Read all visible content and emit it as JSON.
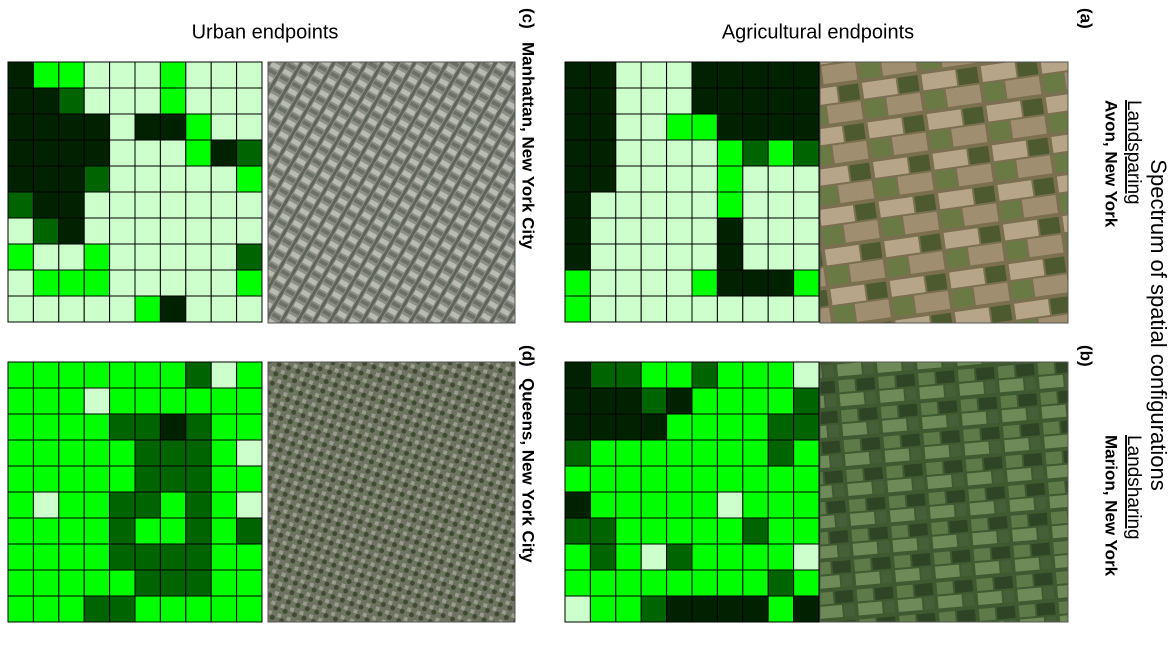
{
  "headers": {
    "urban": "Urban endpoints",
    "agricultural": "Agricultural endpoints"
  },
  "title": "Spectrum of spatial configurations",
  "palette": [
    "#ccffcc",
    "#00ff00",
    "#006400",
    "#002200"
  ],
  "rows": [
    {
      "label": "Landsparing",
      "panels": [
        {
          "tag": "(c)",
          "place": "Manhattan, New York City",
          "grid": [
            [
              3,
              1,
              1,
              0,
              0,
              0,
              1,
              0,
              0,
              0
            ],
            [
              3,
              3,
              2,
              0,
              0,
              0,
              1,
              0,
              0,
              0
            ],
            [
              3,
              3,
              3,
              3,
              0,
              3,
              3,
              1,
              0,
              0
            ],
            [
              3,
              3,
              3,
              3,
              0,
              0,
              0,
              1,
              3,
              2
            ],
            [
              3,
              3,
              3,
              2,
              0,
              0,
              0,
              0,
              0,
              1
            ],
            [
              2,
              3,
              3,
              0,
              0,
              0,
              0,
              0,
              0,
              0
            ],
            [
              0,
              2,
              3,
              0,
              0,
              0,
              0,
              0,
              0,
              0
            ],
            [
              1,
              0,
              0,
              1,
              0,
              0,
              0,
              0,
              0,
              2
            ],
            [
              0,
              1,
              1,
              1,
              0,
              0,
              0,
              0,
              0,
              1
            ],
            [
              0,
              0,
              0,
              0,
              0,
              1,
              3,
              0,
              0,
              0
            ]
          ]
        },
        {
          "tag": "(a)",
          "place": "Avon, New York",
          "grid": [
            [
              3,
              3,
              0,
              0,
              0,
              3,
              3,
              3,
              3,
              3
            ],
            [
              3,
              3,
              0,
              0,
              0,
              3,
              3,
              3,
              3,
              3
            ],
            [
              3,
              3,
              0,
              0,
              1,
              1,
              3,
              3,
              3,
              3
            ],
            [
              3,
              3,
              0,
              0,
              0,
              0,
              1,
              2,
              1,
              2
            ],
            [
              3,
              3,
              0,
              0,
              0,
              0,
              1,
              0,
              0,
              0
            ],
            [
              3,
              0,
              0,
              0,
              0,
              0,
              1,
              0,
              0,
              0
            ],
            [
              3,
              0,
              0,
              0,
              0,
              0,
              3,
              0,
              0,
              0
            ],
            [
              3,
              0,
              0,
              0,
              0,
              0,
              3,
              0,
              0,
              0
            ],
            [
              1,
              0,
              0,
              0,
              0,
              1,
              3,
              3,
              3,
              1
            ],
            [
              1,
              0,
              0,
              0,
              0,
              0,
              0,
              0,
              0,
              0
            ]
          ]
        }
      ]
    },
    {
      "label": "Landsharing",
      "panels": [
        {
          "tag": "(d)",
          "place": "Queens, New York City",
          "grid": [
            [
              1,
              1,
              1,
              1,
              1,
              1,
              1,
              2,
              0,
              1
            ],
            [
              1,
              1,
              1,
              0,
              1,
              1,
              1,
              1,
              1,
              1
            ],
            [
              1,
              1,
              1,
              1,
              2,
              2,
              3,
              2,
              1,
              1
            ],
            [
              1,
              1,
              1,
              1,
              1,
              2,
              2,
              2,
              1,
              0
            ],
            [
              1,
              1,
              1,
              1,
              1,
              2,
              2,
              2,
              1,
              1
            ],
            [
              1,
              0,
              1,
              1,
              2,
              2,
              1,
              2,
              1,
              0
            ],
            [
              1,
              1,
              1,
              1,
              2,
              1,
              1,
              2,
              1,
              2
            ],
            [
              1,
              1,
              1,
              1,
              2,
              2,
              2,
              2,
              1,
              1
            ],
            [
              1,
              1,
              1,
              1,
              1,
              2,
              2,
              2,
              1,
              1
            ],
            [
              1,
              1,
              1,
              2,
              2,
              1,
              1,
              1,
              1,
              1
            ]
          ]
        },
        {
          "tag": "(b)",
          "place": "Marion, New York",
          "grid": [
            [
              3,
              2,
              2,
              1,
              1,
              2,
              1,
              1,
              1,
              0
            ],
            [
              3,
              3,
              3,
              2,
              3,
              1,
              1,
              1,
              1,
              2
            ],
            [
              3,
              3,
              3,
              3,
              1,
              1,
              1,
              1,
              2,
              2
            ],
            [
              2,
              1,
              1,
              1,
              1,
              1,
              1,
              1,
              2,
              1
            ],
            [
              1,
              1,
              1,
              1,
              1,
              1,
              1,
              1,
              1,
              1
            ],
            [
              3,
              1,
              1,
              1,
              1,
              1,
              0,
              1,
              1,
              1
            ],
            [
              2,
              2,
              1,
              1,
              1,
              1,
              1,
              2,
              1,
              1
            ],
            [
              1,
              2,
              1,
              0,
              2,
              1,
              1,
              1,
              1,
              0
            ],
            [
              1,
              1,
              1,
              1,
              1,
              1,
              1,
              1,
              2,
              1
            ],
            [
              0,
              1,
              1,
              2,
              3,
              3,
              3,
              3,
              1,
              3
            ]
          ]
        }
      ]
    }
  ]
}
